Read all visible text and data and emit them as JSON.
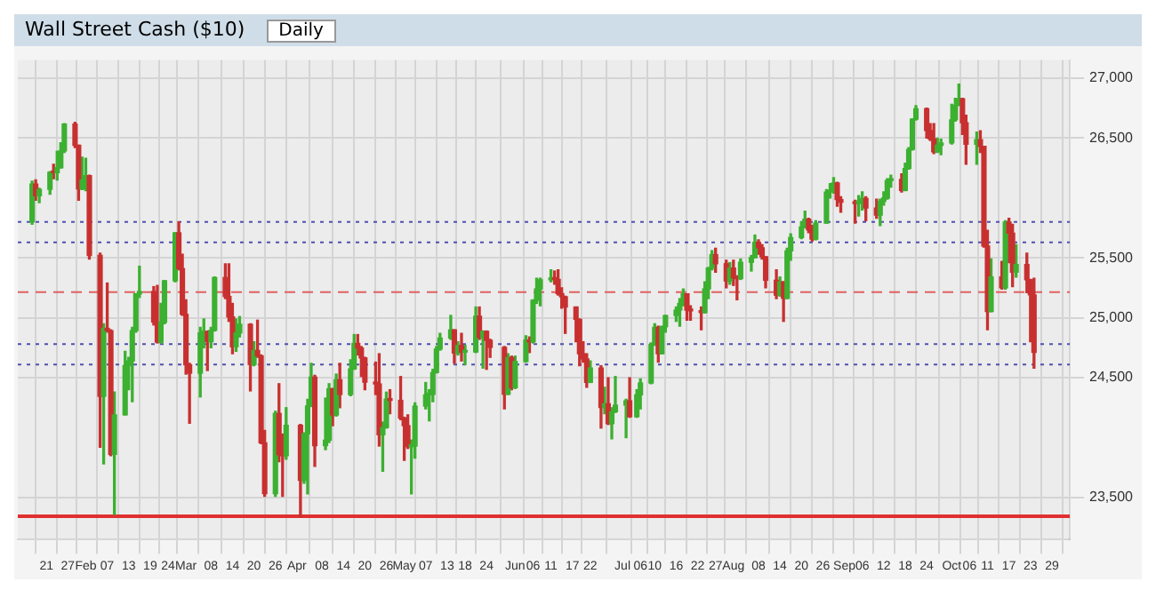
{
  "chart_data": {
    "type": "candlestick",
    "title": "Wall Street Cash ($10)",
    "subtitle": "Daily",
    "x": [
      "--01-17",
      "--01-18",
      "--01-19",
      "--01-22",
      "--01-23",
      "--01-24",
      "--01-25",
      "--01-26",
      "--01-29",
      "--01-30",
      "--01-31",
      "--02-01",
      "--02-02",
      "--02-05",
      "--02-06",
      "--02-07",
      "--02-08",
      "--02-09",
      "--02-12",
      "--02-13",
      "--02-14",
      "--02-15",
      "--02-16",
      "--02-20",
      "--02-21",
      "--02-22",
      "--02-23",
      "--02-26",
      "--02-27",
      "--02-28",
      "--03-01",
      "--03-02",
      "--03-05",
      "--03-06",
      "--03-07",
      "--03-08",
      "--03-09",
      "--03-12",
      "--03-13",
      "--03-14",
      "--03-15",
      "--03-16",
      "--03-19",
      "--03-20",
      "--03-21",
      "--03-22",
      "--03-23",
      "--03-26",
      "--03-27",
      "--03-28",
      "--03-29",
      "--04-02",
      "--04-03",
      "--04-04",
      "--04-05",
      "--04-06",
      "--04-09",
      "--04-10",
      "--04-11",
      "--04-12",
      "--04-13",
      "--04-16",
      "--04-17",
      "--04-18",
      "--04-19",
      "--04-20",
      "--04-23",
      "--04-24",
      "--04-25",
      "--04-26",
      "--04-27",
      "--04-30",
      "--05-01",
      "--05-02",
      "--05-03",
      "--05-04",
      "--05-07",
      "--05-08",
      "--05-09",
      "--05-10",
      "--05-11",
      "--05-14",
      "--05-15",
      "--05-16",
      "--05-17",
      "--05-18",
      "--05-21",
      "--05-22",
      "--05-23",
      "--05-24",
      "--05-25",
      "--05-29",
      "--05-30",
      "--05-31",
      "--06-01",
      "--06-04",
      "--06-05",
      "--06-06",
      "--06-07",
      "--06-08",
      "--06-11",
      "--06-12",
      "--06-13",
      "--06-14",
      "--06-15",
      "--06-18",
      "--06-19",
      "--06-20",
      "--06-21",
      "--06-22",
      "--06-25",
      "--06-26",
      "--06-27",
      "--06-28",
      "--06-29",
      "--07-02",
      "--07-03",
      "--07-05",
      "--07-06",
      "--07-09",
      "--07-10",
      "--07-11",
      "--07-12",
      "--07-13",
      "--07-16",
      "--07-17",
      "--07-18",
      "--07-19",
      "--07-20",
      "--07-23",
      "--07-24",
      "--07-25",
      "--07-26",
      "--07-27",
      "--07-30",
      "--07-31",
      "--08-01",
      "--08-02",
      "--08-03",
      "--08-06",
      "--08-07",
      "--08-08",
      "--08-09",
      "--08-10",
      "--08-13",
      "--08-14",
      "--08-15",
      "--08-16",
      "--08-17",
      "--08-20",
      "--08-21",
      "--08-22",
      "--08-23",
      "--08-24",
      "--08-27",
      "--08-28",
      "--08-29",
      "--08-30",
      "--08-31",
      "--09-04",
      "--09-05",
      "--09-06",
      "--09-07",
      "--09-10",
      "--09-11",
      "--09-12",
      "--09-13",
      "--09-14",
      "--09-17",
      "--09-18",
      "--09-19",
      "--09-20",
      "--09-21",
      "--09-24",
      "--09-25",
      "--09-26",
      "--09-27",
      "--09-28",
      "--10-01",
      "--10-02",
      "--10-03",
      "--10-04",
      "--10-05",
      "--10-08",
      "--10-09",
      "--10-10",
      "--10-11",
      "--10-12",
      "--10-15",
      "--10-16",
      "--10-17",
      "--10-18",
      "--10-19",
      "--10-22",
      "--10-23",
      "--10-24"
    ],
    "ohlc": [
      [
        25800,
        26140,
        25780,
        26116
      ],
      [
        26116,
        26150,
        25980,
        26017
      ],
      [
        26017,
        26080,
        25960,
        26071
      ],
      [
        26071,
        26220,
        26030,
        26214
      ],
      [
        26214,
        26280,
        26160,
        26210
      ],
      [
        26210,
        26390,
        26150,
        26252
      ],
      [
        26252,
        26460,
        26250,
        26392
      ],
      [
        26392,
        26620,
        26380,
        26616
      ],
      [
        26616,
        26630,
        26420,
        26439
      ],
      [
        26439,
        26440,
        25980,
        26076
      ],
      [
        26076,
        26340,
        26070,
        26149
      ],
      [
        26149,
        26330,
        26060,
        26186
      ],
      [
        26186,
        26190,
        25490,
        25520
      ],
      [
        25520,
        25540,
        23920,
        24345
      ],
      [
        24345,
        24950,
        23780,
        24912
      ],
      [
        24912,
        25290,
        24880,
        24893
      ],
      [
        24893,
        24900,
        23850,
        23860
      ],
      [
        23860,
        24380,
        23360,
        24190
      ],
      [
        24190,
        24720,
        24190,
        24601
      ],
      [
        24601,
        24670,
        24400,
        24640
      ],
      [
        24640,
        24920,
        24300,
        24893
      ],
      [
        24893,
        25200,
        24880,
        25200
      ],
      [
        25200,
        25430,
        25170,
        25219
      ],
      [
        25219,
        25260,
        24940,
        24964
      ],
      [
        24964,
        25270,
        24790,
        24797
      ],
      [
        24797,
        25120,
        24790,
        24962
      ],
      [
        24962,
        25310,
        24950,
        25309
      ],
      [
        25309,
        25710,
        25300,
        25709
      ],
      [
        25709,
        25800,
        25400,
        25410
      ],
      [
        25410,
        25530,
        25020,
        25029
      ],
      [
        25029,
        25150,
        24530,
        24608
      ],
      [
        24608,
        24620,
        24120,
        24538
      ],
      [
        24538,
        24920,
        24340,
        24874
      ],
      [
        24874,
        24990,
        24750,
        24884
      ],
      [
        24884,
        24890,
        24560,
        24801
      ],
      [
        24801,
        24920,
        24750,
        24895
      ],
      [
        24895,
        25340,
        24890,
        25336
      ],
      [
        25336,
        25450,
        25160,
        25178
      ],
      [
        25178,
        25450,
        24970,
        25007
      ],
      [
        25007,
        25120,
        24700,
        24758
      ],
      [
        24758,
        24990,
        24720,
        24873
      ],
      [
        24873,
        25010,
        24840,
        24946
      ],
      [
        24946,
        24950,
        24390,
        24610
      ],
      [
        24610,
        24800,
        24600,
        24727
      ],
      [
        24727,
        24980,
        24670,
        24682
      ],
      [
        24682,
        24690,
        23950,
        23957
      ],
      [
        23957,
        24060,
        23510,
        23533
      ],
      [
        23533,
        24220,
        23510,
        24202
      ],
      [
        24202,
        24450,
        23800,
        23857
      ],
      [
        23857,
        24030,
        23510,
        23849
      ],
      [
        23849,
        24250,
        23820,
        24103
      ],
      [
        24103,
        24110,
        23340,
        23644
      ],
      [
        23644,
        24040,
        23620,
        24033
      ],
      [
        24033,
        24320,
        23530,
        24264
      ],
      [
        24264,
        24620,
        24260,
        24505
      ],
      [
        24505,
        24520,
        23760,
        23933
      ],
      [
        23933,
        24330,
        23900,
        23979
      ],
      [
        23979,
        24450,
        23960,
        24408
      ],
      [
        24408,
        24410,
        24100,
        24189
      ],
      [
        24189,
        24530,
        24180,
        24483
      ],
      [
        24483,
        24620,
        24250,
        24360
      ],
      [
        24360,
        24650,
        24350,
        24573
      ],
      [
        24573,
        24860,
        24570,
        24786
      ],
      [
        24786,
        24860,
        24690,
        24748
      ],
      [
        24748,
        24760,
        24510,
        24665
      ],
      [
        24665,
        24670,
        24400,
        24463
      ],
      [
        24463,
        24630,
        24360,
        24448
      ],
      [
        24448,
        24700,
        23930,
        24024
      ],
      [
        24024,
        24130,
        23720,
        24084
      ],
      [
        24084,
        24380,
        24080,
        24322
      ],
      [
        24322,
        24400,
        24200,
        24311
      ],
      [
        24311,
        24510,
        24150,
        24163
      ],
      [
        24163,
        24170,
        23810,
        24100
      ],
      [
        24100,
        24190,
        23910,
        23925
      ],
      [
        23925,
        23980,
        23530,
        23930
      ],
      [
        23930,
        24290,
        23830,
        24263
      ],
      [
        24263,
        24460,
        24240,
        24357
      ],
      [
        24357,
        24400,
        24140,
        24361
      ],
      [
        24361,
        24570,
        24300,
        24543
      ],
      [
        24543,
        24760,
        24540,
        24739
      ],
      [
        24739,
        24870,
        24730,
        24831
      ],
      [
        24831,
        25020,
        24820,
        24899
      ],
      [
        24899,
        24900,
        24620,
        24706
      ],
      [
        24706,
        24800,
        24690,
        24769
      ],
      [
        24769,
        24870,
        24640,
        24714
      ],
      [
        24714,
        24770,
        24610,
        24715
      ],
      [
        24715,
        25090,
        24710,
        25013
      ],
      [
        25013,
        25090,
        24820,
        24835
      ],
      [
        24835,
        24890,
        24580,
        24887
      ],
      [
        24887,
        24890,
        24570,
        24812
      ],
      [
        24812,
        24820,
        24670,
        24753
      ],
      [
        24753,
        24760,
        24240,
        24362
      ],
      [
        24362,
        24700,
        24360,
        24668
      ],
      [
        24668,
        24680,
        24400,
        24416
      ],
      [
        24416,
        24680,
        24410,
        24635
      ],
      [
        24635,
        24850,
        24630,
        24814
      ],
      [
        24814,
        24840,
        24710,
        24799
      ],
      [
        24799,
        25150,
        24790,
        25146
      ],
      [
        25146,
        25330,
        25120,
        25241
      ],
      [
        25241,
        25330,
        25100,
        25317
      ],
      [
        25317,
        25400,
        25300,
        25322
      ],
      [
        25322,
        25390,
        25280,
        25320
      ],
      [
        25320,
        25400,
        25190,
        25201
      ],
      [
        25201,
        25250,
        25080,
        25175
      ],
      [
        25175,
        25180,
        24870,
        25090
      ],
      [
        25090,
        25090,
        24800,
        24987
      ],
      [
        24987,
        24990,
        24600,
        24700
      ],
      [
        24700,
        24800,
        24630,
        24657
      ],
      [
        24657,
        24700,
        24420,
        24461
      ],
      [
        24461,
        24640,
        24460,
        24581
      ],
      [
        24581,
        24600,
        24080,
        24252
      ],
      [
        24252,
        24420,
        24200,
        24283
      ],
      [
        24283,
        24500,
        24110,
        24117
      ],
      [
        24117,
        24250,
        23990,
        24216
      ],
      [
        24216,
        24510,
        24210,
        24271
      ],
      [
        24271,
        24320,
        24000,
        24307
      ],
      [
        24307,
        24500,
        24170,
        24175
      ],
      [
        24175,
        24400,
        24170,
        24357
      ],
      [
        24357,
        24490,
        24240,
        24456
      ],
      [
        24456,
        24790,
        24450,
        24776
      ],
      [
        24776,
        24950,
        24770,
        24920
      ],
      [
        24920,
        24930,
        24630,
        24700
      ],
      [
        24700,
        24930,
        24700,
        24925
      ],
      [
        24925,
        25020,
        24880,
        25019
      ],
      [
        25019,
        25090,
        24970,
        25064
      ],
      [
        25064,
        25160,
        24930,
        25120
      ],
      [
        25120,
        25240,
        25100,
        25200
      ],
      [
        25200,
        25200,
        24980,
        25064
      ],
      [
        25064,
        25100,
        24980,
        25058
      ],
      [
        25058,
        25090,
        24900,
        25044
      ],
      [
        25044,
        25300,
        25040,
        25241
      ],
      [
        25241,
        25420,
        25160,
        25415
      ],
      [
        25415,
        25560,
        25400,
        25527
      ],
      [
        25527,
        25580,
        25380,
        25451
      ],
      [
        25451,
        25480,
        25250,
        25307
      ],
      [
        25307,
        25460,
        25280,
        25415
      ],
      [
        25415,
        25480,
        25270,
        25333
      ],
      [
        25333,
        25350,
        25150,
        25327
      ],
      [
        25327,
        25490,
        25320,
        25463
      ],
      [
        25463,
        25520,
        25390,
        25502
      ],
      [
        25502,
        25690,
        25500,
        25629
      ],
      [
        25629,
        25650,
        25530,
        25584
      ],
      [
        25584,
        25610,
        25490,
        25509
      ],
      [
        25509,
        25510,
        25250,
        25313
      ],
      [
        25313,
        25400,
        25160,
        25188
      ],
      [
        25188,
        25340,
        25180,
        25300
      ],
      [
        25300,
        25300,
        24970,
        25162
      ],
      [
        25162,
        25580,
        25160,
        25558
      ],
      [
        25558,
        25700,
        25480,
        25669
      ],
      [
        25669,
        25800,
        25660,
        25758
      ],
      [
        25758,
        25890,
        25750,
        25822
      ],
      [
        25822,
        25830,
        25710,
        25733
      ],
      [
        25733,
        25770,
        25640,
        25656
      ],
      [
        25656,
        25810,
        25650,
        25790
      ],
      [
        25790,
        26070,
        25790,
        26049
      ],
      [
        26049,
        26120,
        26000,
        26064
      ],
      [
        26064,
        26170,
        26040,
        26124
      ],
      [
        26124,
        26130,
        25930,
        25986
      ],
      [
        25986,
        26010,
        25880,
        25964
      ],
      [
        25964,
        25980,
        25790,
        25952
      ],
      [
        25952,
        26020,
        25850,
        25974
      ],
      [
        25974,
        26050,
        25900,
        25995
      ],
      [
        25995,
        26010,
        25810,
        25916
      ],
      [
        25916,
        25990,
        25830,
        25857
      ],
      [
        25857,
        25990,
        25770,
        25971
      ],
      [
        25971,
        26050,
        25940,
        25998
      ],
      [
        25998,
        26160,
        25990,
        26145
      ],
      [
        26145,
        26190,
        26090,
        26154
      ],
      [
        26154,
        26200,
        26050,
        26062
      ],
      [
        26062,
        26290,
        26060,
        26246
      ],
      [
        26246,
        26420,
        26240,
        26405
      ],
      [
        26405,
        26660,
        26400,
        26657
      ],
      [
        26657,
        26770,
        26650,
        26743
      ],
      [
        26743,
        26750,
        26500,
        26562
      ],
      [
        26562,
        26620,
        26480,
        26492
      ],
      [
        26492,
        26620,
        26370,
        26385
      ],
      [
        26385,
        26500,
        26380,
        26439
      ],
      [
        26439,
        26490,
        26360,
        26458
      ],
      [
        26458,
        26780,
        26450,
        26651
      ],
      [
        26651,
        26830,
        26640,
        26773
      ],
      [
        26773,
        26950,
        26770,
        26828
      ],
      [
        26828,
        26830,
        26530,
        26627
      ],
      [
        26627,
        26690,
        26280,
        26447
      ],
      [
        26447,
        26550,
        26280,
        26487
      ],
      [
        26487,
        26560,
        26380,
        26430
      ],
      [
        26430,
        26430,
        25590,
        25599
      ],
      [
        25599,
        25730,
        24900,
        25053
      ],
      [
        25053,
        25490,
        25050,
        25340
      ],
      [
        25340,
        25470,
        25240,
        25250
      ],
      [
        25250,
        25810,
        25240,
        25798
      ],
      [
        25798,
        25830,
        25460,
        25706
      ],
      [
        25706,
        25780,
        25260,
        25380
      ],
      [
        25380,
        25610,
        25340,
        25444
      ],
      [
        25444,
        25540,
        25210,
        25317
      ],
      [
        25317,
        25320,
        24800,
        25191
      ],
      [
        25191,
        25330,
        24580,
        24711
      ]
    ],
    "xlim": [
      "--01-16",
      "--10-31"
    ],
    "xticks": [
      {
        "value": "--01-21",
        "label": "21"
      },
      {
        "value": "--01-27",
        "label": "27"
      },
      {
        "value": "--02-01",
        "label": "Feb"
      },
      {
        "value": "--02-07",
        "label": "07"
      },
      {
        "value": "--02-13",
        "label": "13"
      },
      {
        "value": "--02-19",
        "label": "19"
      },
      {
        "value": "--02-24",
        "label": "24"
      },
      {
        "value": "--03-01",
        "label": "Mar"
      },
      {
        "value": "--03-08",
        "label": "08"
      },
      {
        "value": "--03-14",
        "label": "14"
      },
      {
        "value": "--03-20",
        "label": "20"
      },
      {
        "value": "--03-26",
        "label": "26"
      },
      {
        "value": "--04-01",
        "label": "Apr"
      },
      {
        "value": "--04-08",
        "label": "08"
      },
      {
        "value": "--04-14",
        "label": "14"
      },
      {
        "value": "--04-20",
        "label": "20"
      },
      {
        "value": "--04-26",
        "label": "26"
      },
      {
        "value": "--05-01",
        "label": "May"
      },
      {
        "value": "--05-07",
        "label": "07"
      },
      {
        "value": "--05-13",
        "label": "13"
      },
      {
        "value": "--05-18",
        "label": "18"
      },
      {
        "value": "--05-24",
        "label": "24"
      },
      {
        "value": "--06-01",
        "label": "Jun"
      },
      {
        "value": "--06-06",
        "label": "06"
      },
      {
        "value": "--06-11",
        "label": "11"
      },
      {
        "value": "--06-17",
        "label": "17"
      },
      {
        "value": "--06-22",
        "label": "22"
      },
      {
        "value": "--07-01",
        "label": "Jul"
      },
      {
        "value": "--07-06",
        "label": "06"
      },
      {
        "value": "--07-10",
        "label": "10"
      },
      {
        "value": "--07-16",
        "label": "16"
      },
      {
        "value": "--07-22",
        "label": "22"
      },
      {
        "value": "--07-27",
        "label": "27"
      },
      {
        "value": "--08-01",
        "label": "Aug"
      },
      {
        "value": "--08-08",
        "label": "08"
      },
      {
        "value": "--08-14",
        "label": "14"
      },
      {
        "value": "--08-20",
        "label": "20"
      },
      {
        "value": "--08-26",
        "label": "26"
      },
      {
        "value": "--09-01",
        "label": "Sep"
      },
      {
        "value": "--09-06",
        "label": "06"
      },
      {
        "value": "--09-12",
        "label": "12"
      },
      {
        "value": "--09-18",
        "label": "18"
      },
      {
        "value": "--09-24",
        "label": "24"
      },
      {
        "value": "--10-01",
        "label": "Oct"
      },
      {
        "value": "--10-06",
        "label": "06"
      },
      {
        "value": "--10-11",
        "label": "11"
      },
      {
        "value": "--10-17",
        "label": "17"
      },
      {
        "value": "--10-23",
        "label": "23"
      },
      {
        "value": "--10-29",
        "label": "29"
      }
    ],
    "ylim": [
      23150,
      27150
    ],
    "yticks": [
      {
        "value": 23500,
        "label": "23,500"
      },
      {
        "value": 24500,
        "label": "24,500"
      },
      {
        "value": 25000,
        "label": "25,000"
      },
      {
        "value": 25500,
        "label": "25,500"
      },
      {
        "value": 26500,
        "label": "26,500"
      },
      {
        "value": 27000,
        "label": "27,000"
      }
    ],
    "ref_lines": [
      {
        "axis": "y",
        "value": 23345,
        "color": "#e03030",
        "line_style": "solid"
      },
      {
        "axis": "y",
        "value": 25800,
        "color": "#5050b0",
        "line_style": "dotted"
      },
      {
        "axis": "y",
        "value": 25630,
        "color": "#5050b0",
        "line_style": "dotted"
      },
      {
        "axis": "y",
        "value": 25215,
        "color": "#e06060",
        "line_style": "dashed"
      },
      {
        "axis": "y",
        "value": 24780,
        "color": "#5050b0",
        "line_style": "dotted"
      },
      {
        "axis": "y",
        "value": 24610,
        "color": "#5050b0",
        "line_style": "dotted"
      }
    ],
    "colors": [
      "#3cb030",
      "#c83030",
      "#3cb030",
      "#3cb030",
      "#c83030",
      "#3cb030",
      "#3cb030",
      "#3cb030",
      "#c83030",
      "#c83030",
      "#3cb030",
      "#3cb030",
      "#c83030",
      "#c83030",
      "#3cb030",
      "#c83030",
      "#c83030",
      "#3cb030",
      "#3cb030",
      "#3cb030",
      "#3cb030",
      "#3cb030",
      "#3cb030",
      "#c83030",
      "#c83030",
      "#3cb030",
      "#3cb030",
      "#3cb030",
      "#c83030",
      "#c83030",
      "#c83030",
      "#c83030",
      "#3cb030",
      "#3cb030",
      "#c83030",
      "#3cb030",
      "#3cb030",
      "#c83030",
      "#c83030",
      "#c83030",
      "#3cb030",
      "#3cb030",
      "#c83030",
      "#3cb030",
      "#c83030",
      "#c83030",
      "#c83030",
      "#3cb030",
      "#c83030",
      "#c83030",
      "#3cb030",
      "#c83030",
      "#3cb030",
      "#3cb030",
      "#3cb030",
      "#c83030",
      "#3cb030",
      "#3cb030",
      "#c83030",
      "#3cb030",
      "#c83030",
      "#3cb030",
      "#3cb030",
      "#c83030",
      "#c83030",
      "#c83030",
      "#c83030",
      "#c83030",
      "#3cb030",
      "#3cb030",
      "#c83030",
      "#c83030",
      "#c83030",
      "#c83030",
      "#3cb030",
      "#3cb030",
      "#3cb030",
      "#3cb030",
      "#3cb030",
      "#3cb030",
      "#3cb030",
      "#3cb030",
      "#c83030",
      "#3cb030",
      "#c83030",
      "#3cb030",
      "#3cb030",
      "#c83030",
      "#3cb030",
      "#c83030",
      "#c83030",
      "#c83030",
      "#3cb030",
      "#c83030",
      "#3cb030",
      "#3cb030",
      "#c83030",
      "#3cb030",
      "#3cb030",
      "#3cb030",
      "#3cb030",
      "#c83030",
      "#c83030",
      "#c83030",
      "#c83030",
      "#c83030",
      "#c83030",
      "#c83030",
      "#c83030",
      "#3cb030",
      "#c83030",
      "#3cb030",
      "#c83030",
      "#3cb030",
      "#3cb030",
      "#3cb030",
      "#c83030",
      "#3cb030",
      "#3cb030",
      "#3cb030",
      "#3cb030",
      "#c83030",
      "#3cb030",
      "#3cb030",
      "#3cb030",
      "#3cb030",
      "#3cb030",
      "#c83030",
      "#c83030",
      "#c83030",
      "#3cb030",
      "#3cb030",
      "#3cb030",
      "#c83030",
      "#c83030",
      "#3cb030",
      "#c83030",
      "#c83030",
      "#3cb030",
      "#3cb030",
      "#3cb030",
      "#c83030",
      "#c83030",
      "#c83030",
      "#c83030",
      "#3cb030",
      "#c83030",
      "#3cb030",
      "#3cb030",
      "#3cb030",
      "#3cb030",
      "#c83030",
      "#c83030",
      "#3cb030",
      "#3cb030",
      "#3cb030",
      "#3cb030",
      "#c83030",
      "#c83030",
      "#c83030",
      "#3cb030",
      "#3cb030",
      "#c83030",
      "#c83030",
      "#3cb030",
      "#3cb030",
      "#3cb030",
      "#3cb030",
      "#c83030",
      "#3cb030",
      "#3cb030",
      "#3cb030",
      "#3cb030",
      "#c83030",
      "#c83030",
      "#c83030",
      "#3cb030",
      "#3cb030",
      "#3cb030",
      "#3cb030",
      "#3cb030",
      "#c83030",
      "#c83030",
      "#3cb030",
      "#c83030",
      "#c83030",
      "#c83030",
      "#3cb030",
      "#c83030",
      "#3cb030",
      "#c83030",
      "#c83030",
      "#3cb030",
      "#c83030",
      "#c83030",
      "#c83030"
    ],
    "grid": true,
    "legend": false
  }
}
